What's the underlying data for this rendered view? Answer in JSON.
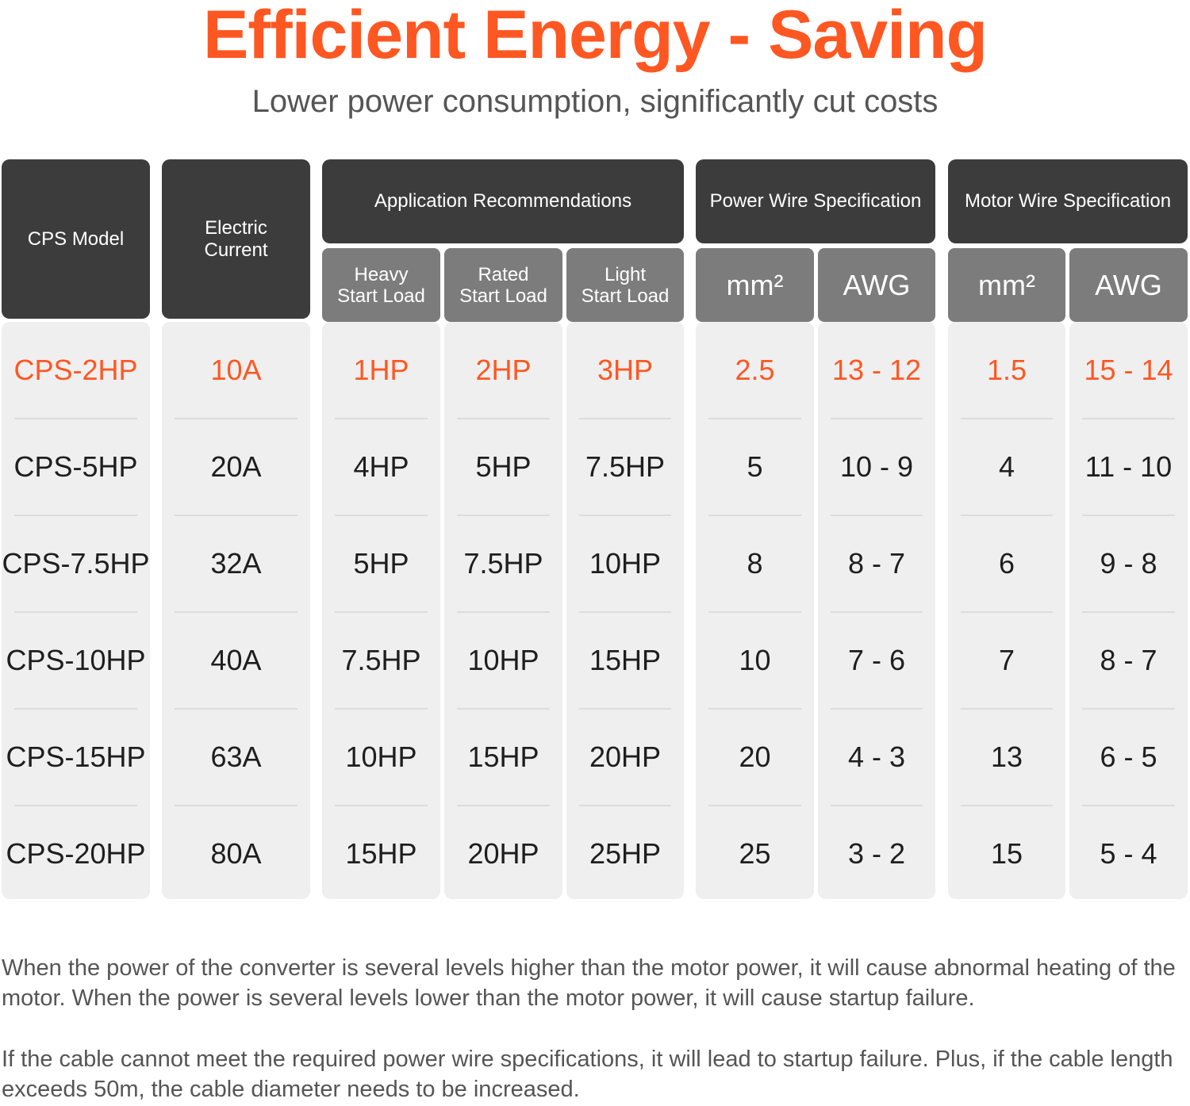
{
  "title": "Efficient Energy - Saving",
  "subtitle": "Lower power consumption, significantly cut costs",
  "colors": {
    "accent": "#ff5722",
    "header_dark": "#3c3c3c",
    "header_sub": "#7c7c7c",
    "cell_bg": "#efefef"
  },
  "table": {
    "headers": {
      "model": "CPS Model",
      "current_line1": "Electric",
      "current_line2": "Current",
      "application": "Application Recommendations",
      "power_wire": "Power Wire Specification",
      "motor_wire": "Motor Wire Specification",
      "heavy_line1": "Heavy",
      "heavy_line2": "Start Load",
      "rated_line1": "Rated",
      "rated_line2": "Start Load",
      "light_line1": "Light",
      "light_line2": "Start Load",
      "power_mm2": "mm²",
      "power_awg": "AWG",
      "motor_mm2": "mm²",
      "motor_awg": "AWG"
    },
    "rows": [
      [
        "CPS-2HP",
        "10A",
        "1HP",
        "2HP",
        "3HP",
        "2.5",
        "13 - 12",
        "1.5",
        "15 - 14"
      ],
      [
        "CPS-5HP",
        "20A",
        "4HP",
        "5HP",
        "7.5HP",
        "5",
        "10 - 9",
        "4",
        "11 - 10"
      ],
      [
        "CPS-7.5HP",
        "32A",
        "5HP",
        "7.5HP",
        "10HP",
        "8",
        "8 - 7",
        "6",
        "9 - 8"
      ],
      [
        "CPS-10HP",
        "40A",
        "7.5HP",
        "10HP",
        "15HP",
        "10",
        "7 - 6",
        "7",
        "8 - 7"
      ],
      [
        "CPS-15HP",
        "63A",
        "10HP",
        "15HP",
        "20HP",
        "20",
        "4 - 3",
        "13",
        "6 - 5"
      ],
      [
        "CPS-20HP",
        "80A",
        "15HP",
        "20HP",
        "25HP",
        "25",
        "3 - 2",
        "15",
        "5 - 4"
      ]
    ],
    "highlight_row": 0
  },
  "notes": [
    "When the power of the converter is several levels higher than the motor power, it will cause abnormal heating of the motor. When the power is several levels lower than the motor power, it will cause startup failure.",
    "If the cable cannot meet the required power wire specifications, it will lead to startup failure. Plus, if the cable length exceeds 50m, the cable diameter needs to be increased."
  ]
}
